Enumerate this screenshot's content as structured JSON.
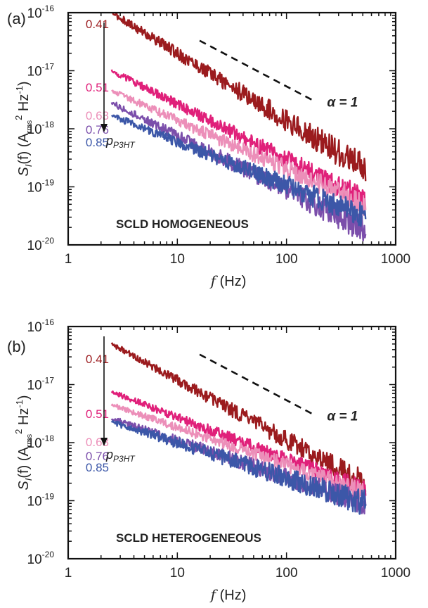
{
  "chart_data": [
    {
      "type": "line",
      "panel_label": "(a)",
      "annotation": "SCLD HOMOGENEOUS",
      "xlabel_var": "f",
      "xlabel_unit": " (Hz)",
      "ylabel_prefix": "S",
      "ylabel_sub": "I",
      "ylabel_mid": "(f) (A",
      "ylabel_sub2": "rms",
      "ylabel_sup": "2",
      "ylabel_unit": " Hz",
      "ylabel_sup2": "-1",
      "ylabel_end": ")",
      "xscale": "log",
      "yscale": "log",
      "xlim": [
        1,
        1000
      ],
      "ylim": [
        1e-20,
        1e-16
      ],
      "x_ticks": [
        "1",
        "10",
        "100",
        "1000"
      ],
      "y_ticks": [
        {
          "base": "10",
          "exp": "-20"
        },
        {
          "base": "10",
          "exp": "-19"
        },
        {
          "base": "10",
          "exp": "-18"
        },
        {
          "base": "10",
          "exp": "-17"
        },
        {
          "base": "10",
          "exp": "-16"
        }
      ],
      "arrow_label": "p",
      "arrow_label_sub": "P3HT",
      "slope_label": "α = 1",
      "slope_line": {
        "x": [
          16,
          180
        ],
        "y": [
          3.3e-17,
          3e-18
        ]
      },
      "series": [
        {
          "name": "0.41",
          "color": "#9b1b1e",
          "x_start": 2.5,
          "x_end": 530,
          "y_start": 1e-16,
          "y_end": 2e-19,
          "noise": 0.22
        },
        {
          "name": "0.51",
          "color": "#e0207a",
          "x_start": 2.5,
          "x_end": 530,
          "y_start": 1e-17,
          "y_end": 6e-20,
          "noise": 0.18
        },
        {
          "name": "0.63",
          "color": "#ec8fb9",
          "x_start": 2.5,
          "x_end": 530,
          "y_start": 4.5e-18,
          "y_end": 5e-20,
          "noise": 0.18
        },
        {
          "name": "0.76",
          "color": "#7b4eab",
          "x_start": 2.5,
          "x_end": 530,
          "y_start": 2.8e-18,
          "y_end": 1.8e-20,
          "noise": 0.2
        },
        {
          "name": "0.85",
          "color": "#3c57a8",
          "x_start": 2.5,
          "x_end": 530,
          "y_start": 1.7e-18,
          "y_end": 3e-20,
          "noise": 0.2
        }
      ]
    },
    {
      "type": "line",
      "panel_label": "(b)",
      "annotation": "SCLD HETEROGENEOUS",
      "xlabel_var": "f",
      "xlabel_unit": " (Hz)",
      "ylabel_prefix": "S",
      "ylabel_sub": "I",
      "ylabel_mid": "(f) (A",
      "ylabel_sub2": "rms",
      "ylabel_sup": "2",
      "ylabel_unit": " Hz",
      "ylabel_sup2": "-1",
      "ylabel_end": ")",
      "xscale": "log",
      "yscale": "log",
      "xlim": [
        1,
        1000
      ],
      "ylim": [
        1e-20,
        1e-16
      ],
      "x_ticks": [
        "1",
        "10",
        "100",
        "1000"
      ],
      "y_ticks": [
        {
          "base": "10",
          "exp": "-20"
        },
        {
          "base": "10",
          "exp": "-19"
        },
        {
          "base": "10",
          "exp": "-18"
        },
        {
          "base": "10",
          "exp": "-17"
        },
        {
          "base": "10",
          "exp": "-16"
        }
      ],
      "arrow_label": "p",
      "arrow_label_sub": "P3HT",
      "slope_label": "α = 1",
      "slope_line": {
        "x": [
          16,
          180
        ],
        "y": [
          3.3e-17,
          3e-18
        ]
      },
      "series": [
        {
          "name": "0.41",
          "color": "#9b1b1e",
          "x_start": 2.5,
          "x_end": 530,
          "y_start": 5e-17,
          "y_end": 2e-19,
          "noise": 0.18
        },
        {
          "name": "0.51",
          "color": "#e0207a",
          "x_start": 2.5,
          "x_end": 530,
          "y_start": 7.5e-18,
          "y_end": 1.5e-19,
          "noise": 0.15
        },
        {
          "name": "0.63",
          "color": "#ec8fb9",
          "x_start": 2.5,
          "x_end": 530,
          "y_start": 4.5e-18,
          "y_end": 1.4e-19,
          "noise": 0.15
        },
        {
          "name": "0.76",
          "color": "#7b4eab",
          "x_start": 2.5,
          "x_end": 530,
          "y_start": 2.6e-18,
          "y_end": 9e-20,
          "noise": 0.18
        },
        {
          "name": "0.85",
          "color": "#3c57a8",
          "x_start": 2.5,
          "x_end": 530,
          "y_start": 2.3e-18,
          "y_end": 9e-20,
          "noise": 0.2
        }
      ]
    }
  ]
}
